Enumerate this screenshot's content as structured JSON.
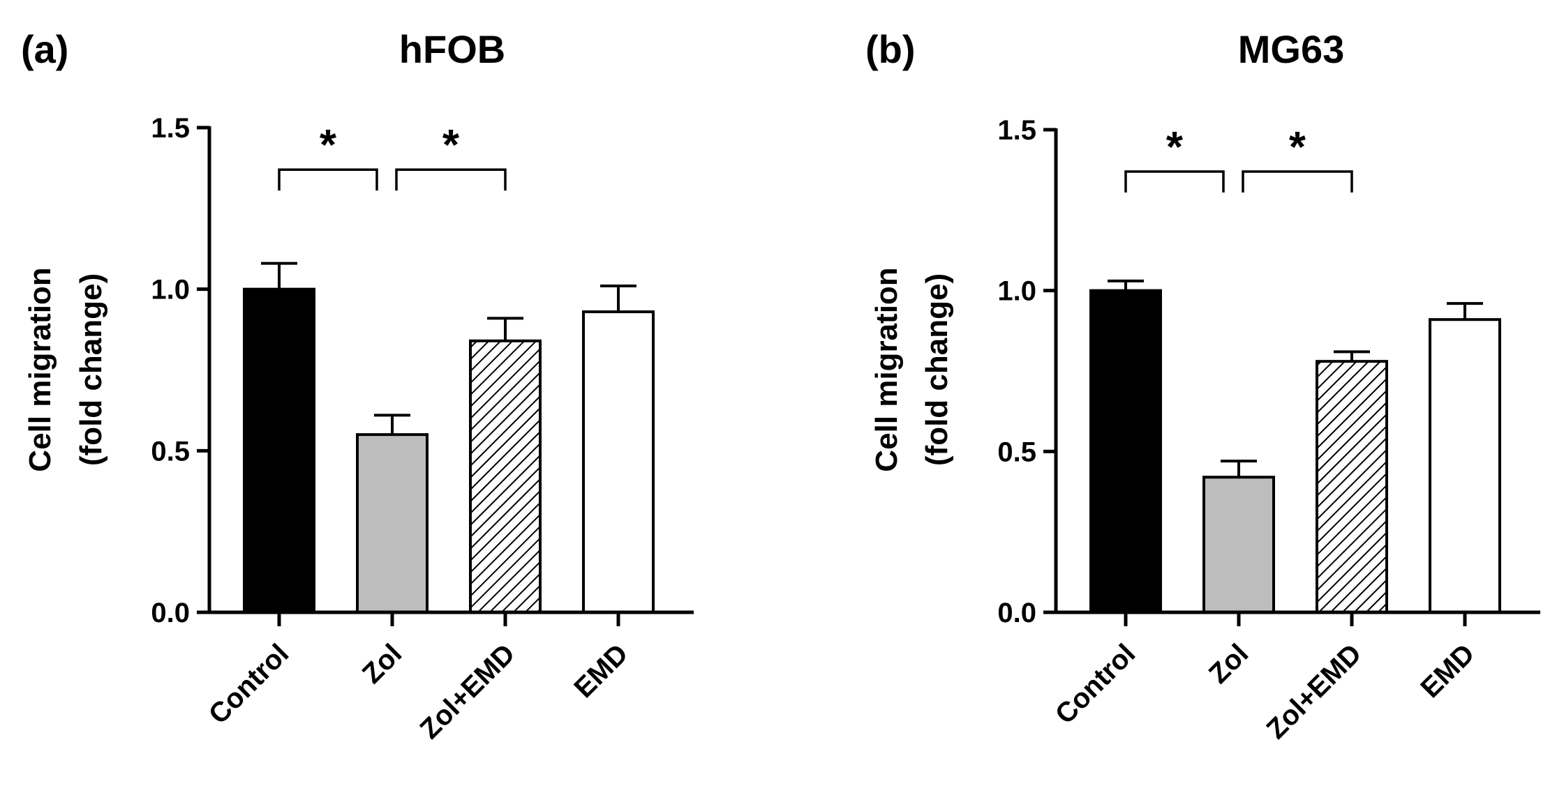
{
  "chart_data": [
    {
      "type": "bar",
      "panel_label": "(a)",
      "title": "hFOB",
      "ylabel_lines": [
        "Cell migration",
        "(fold change)"
      ],
      "xlabel": "",
      "ylim": [
        0,
        1.5
      ],
      "yticks": [
        0.0,
        0.5,
        1.0,
        1.5
      ],
      "ytick_labels": [
        "0.0",
        "0.5",
        "1.0",
        "1.5"
      ],
      "categories": [
        "Control",
        "Zol",
        "Zol+EMD",
        "EMD"
      ],
      "values": [
        1.0,
        0.55,
        0.84,
        0.93
      ],
      "errors": [
        0.08,
        0.06,
        0.07,
        0.08
      ],
      "fills": [
        "#000000",
        "#bdbdbd",
        "hatch",
        "#ffffff"
      ],
      "grid": false,
      "significance": [
        {
          "from": 0,
          "to": 1,
          "label": "*",
          "y": 1.37
        },
        {
          "from": 1,
          "to": 2,
          "label": "*",
          "y": 1.37
        }
      ]
    },
    {
      "type": "bar",
      "panel_label": "(b)",
      "title": "MG63",
      "ylabel_lines": [
        "Cell migration",
        "(fold change)"
      ],
      "xlabel": "",
      "ylim": [
        0,
        1.5
      ],
      "yticks": [
        0.0,
        0.5,
        1.0,
        1.5
      ],
      "ytick_labels": [
        "0.0",
        "0.5",
        "1.0",
        "1.5"
      ],
      "categories": [
        "Control",
        "Zol",
        "Zol+EMD",
        "EMD"
      ],
      "values": [
        1.0,
        0.42,
        0.78,
        0.91
      ],
      "errors": [
        0.03,
        0.05,
        0.03,
        0.05
      ],
      "fills": [
        "#000000",
        "#bdbdbd",
        "hatch",
        "#ffffff"
      ],
      "grid": false,
      "significance": [
        {
          "from": 0,
          "to": 1,
          "label": "*",
          "y": 1.37
        },
        {
          "from": 1,
          "to": 2,
          "label": "*",
          "y": 1.37
        }
      ]
    }
  ]
}
